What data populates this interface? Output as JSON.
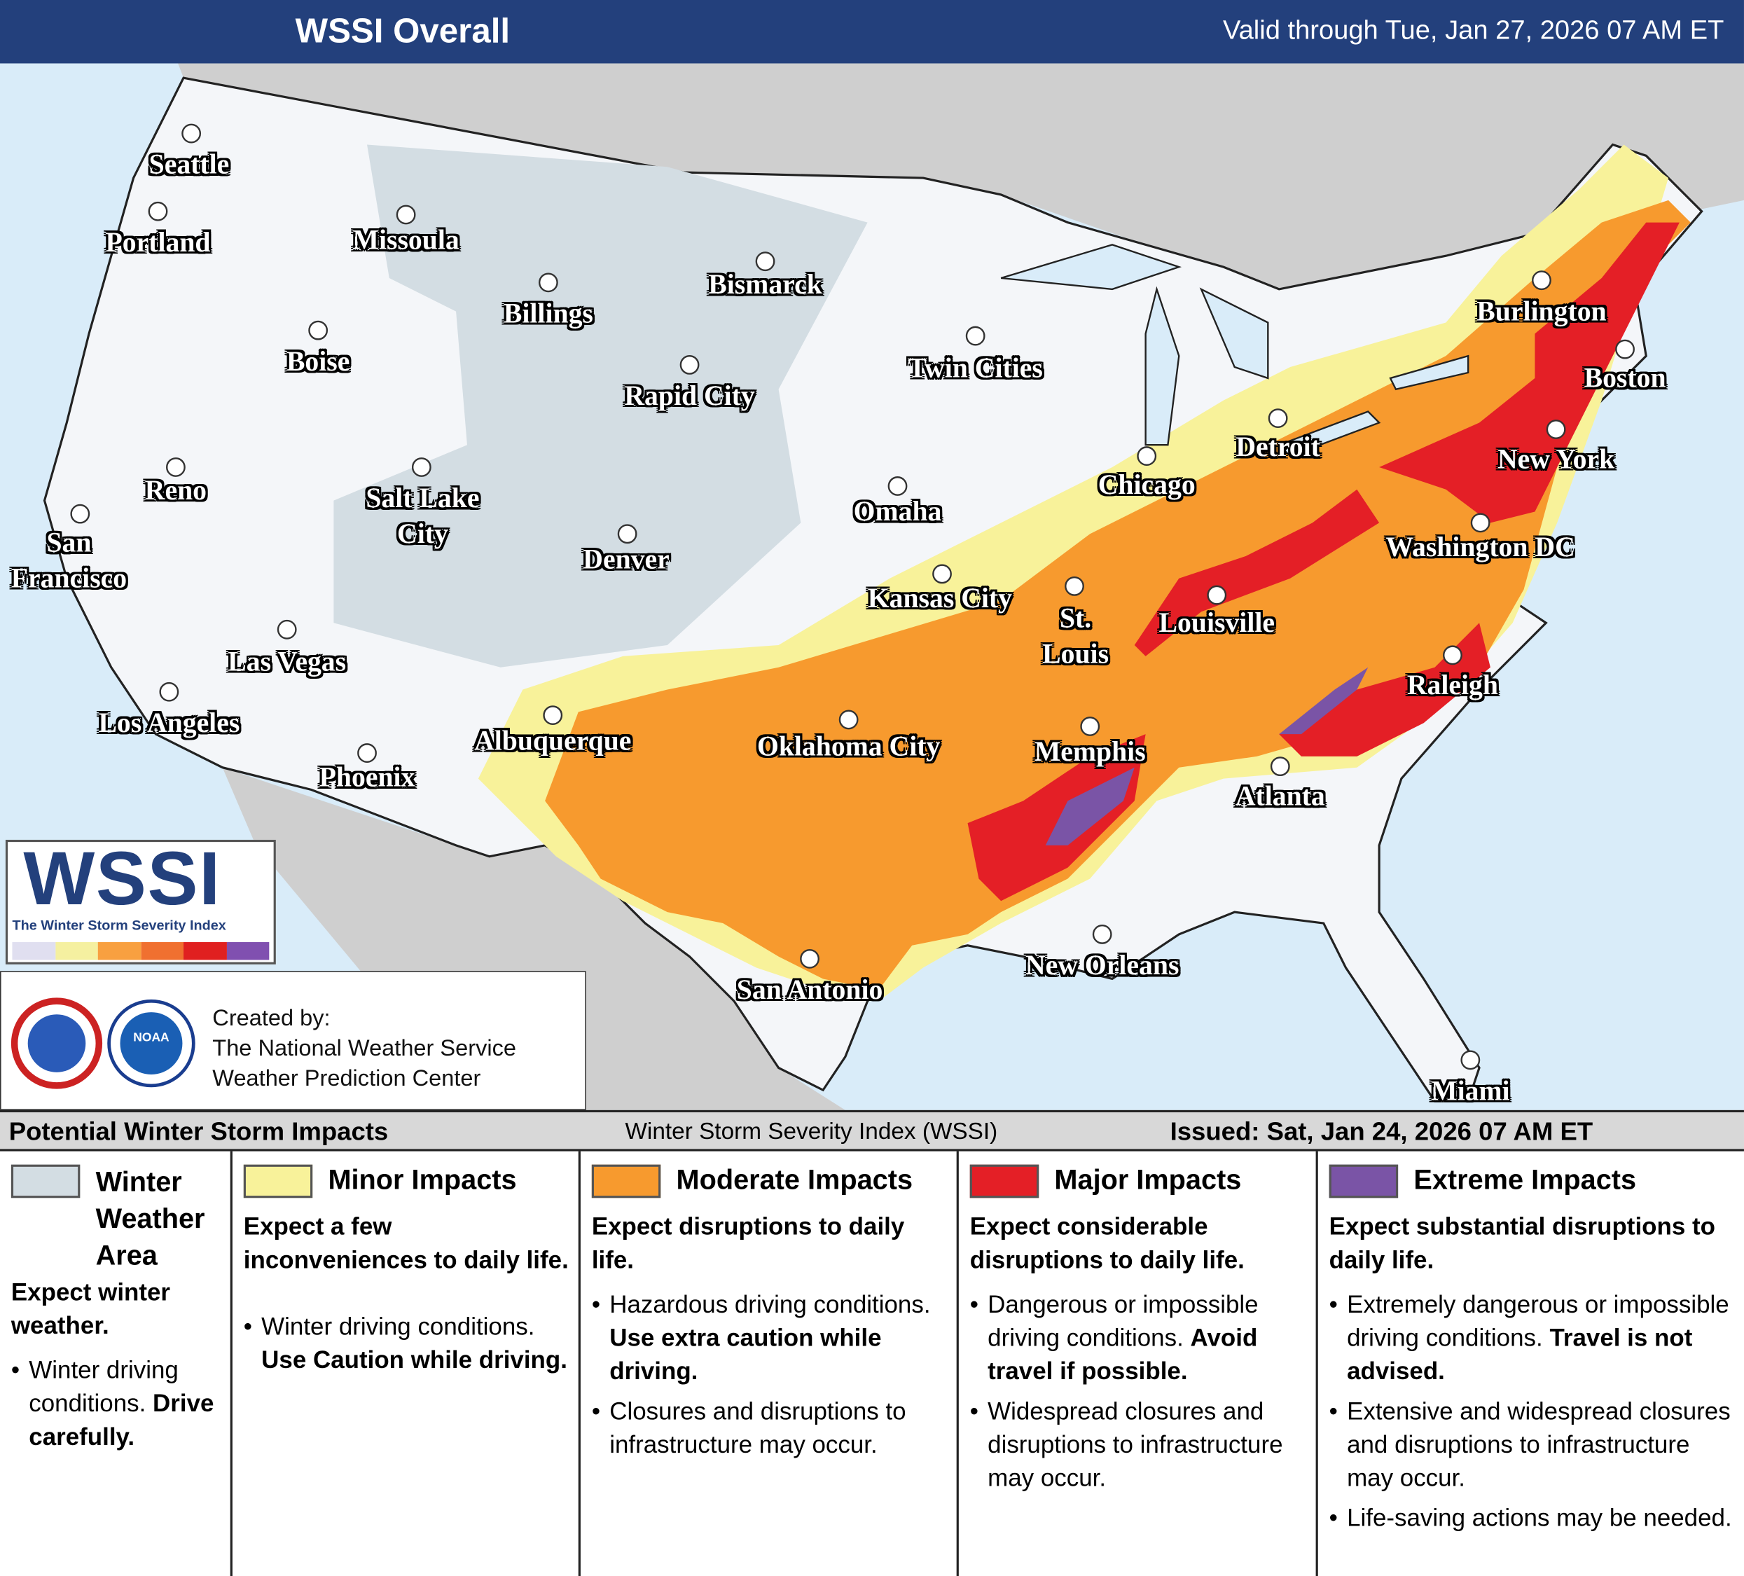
{
  "header": {
    "title": "WSSI Overall",
    "valid": "Valid through Tue, Jan 27, 2026 07 AM ET"
  },
  "map": {
    "cities": [
      "Seattle",
      "Portland",
      "Missoula",
      "Billings",
      "Bismarck",
      "Boise",
      "Rapid City",
      "Twin Cities",
      "Reno",
      "Salt Lake City",
      "San Francisco",
      "Denver",
      "Omaha",
      "Chicago",
      "Detroit",
      "Kansas City",
      "St. Louis",
      "Louisville",
      "Las Vegas",
      "Los Angeles",
      "Albuquerque",
      "Oklahoma City",
      "Memphis",
      "Raleigh",
      "Atlanta",
      "Phoenix",
      "New Orleans",
      "San Antonio",
      "Miami",
      "Burlington",
      "Boston",
      "New York",
      "Washington DC"
    ]
  },
  "logo": {
    "title": "WSSI",
    "subtitle": "The Winter Storm Severity Index",
    "agency": "NOAA"
  },
  "credits": {
    "lines": [
      "Created by:",
      "The National Weather Service",
      "Weather Prediction Center"
    ]
  },
  "legend": {
    "title": "Potential Winter Storm Impacts",
    "subtitle": "Winter Storm Severity Index (WSSI)",
    "issued": "Issued: Sat, Jan 24, 2026 07 AM ET",
    "categories": [
      {
        "name": "Winter Weather Area",
        "color": "#d3dde3",
        "summary": "Expect winter weather.",
        "bullets": [
          {
            "text": "Winter driving conditions.",
            "emphasis": "Drive carefully."
          }
        ]
      },
      {
        "name": "Minor Impacts",
        "color": "#f8f29a",
        "summary": "Expect a few inconveniences to daily life.",
        "bullets": [
          {
            "text": "Winter driving conditions.",
            "emphasis": "Use Caution while driving."
          }
        ]
      },
      {
        "name": "Moderate Impacts",
        "color": "#f79a2e",
        "summary": "Expect disruptions to daily life.",
        "bullets": [
          {
            "text": "Hazardous driving conditions.",
            "emphasis": "Use extra caution while driving."
          },
          {
            "text": "Closures and disruptions to infrastructure may occur."
          }
        ]
      },
      {
        "name": "Major Impacts",
        "color": "#e41f26",
        "summary": "Expect considerable disruptions to daily life.",
        "bullets": [
          {
            "text": "Dangerous or impossible driving conditions.",
            "emphasis": "Avoid travel if possible."
          },
          {
            "text": "Widespread closures and disruptions to infrastructure may occur."
          }
        ]
      },
      {
        "name": "Extreme Impacts",
        "color": "#7a54a6",
        "summary": "Expect substantial disruptions to daily life.",
        "bullets": [
          {
            "text": "Extremely dangerous or impossible driving conditions.",
            "emphasis": "Travel is not advised."
          },
          {
            "text": "Extensive and widespread closures and disruptions to infrastructure may occur."
          },
          {
            "text": "Life-saving actions may be needed."
          }
        ]
      }
    ]
  }
}
